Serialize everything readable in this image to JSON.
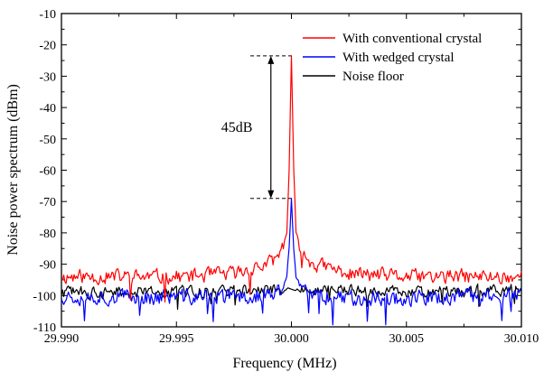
{
  "chart_data": {
    "type": "line",
    "title": "",
    "xlabel": "Frequency (MHz)",
    "ylabel": "Noise power spectrum (dBm)",
    "xlim": [
      29.99,
      30.01
    ],
    "ylim": [
      -110,
      -10
    ],
    "x_ticks": [
      "29.990",
      "29.995",
      "30.000",
      "30.005",
      "30.010"
    ],
    "y_ticks": [
      "-10",
      "-20",
      "-30",
      "-40",
      "-50",
      "-60",
      "-70",
      "-80",
      "-90",
      "-100",
      "-110"
    ],
    "legend_position": "top-right",
    "grid": false,
    "series": [
      {
        "name": "With conventional crystal",
        "color": "#ff0000",
        "x": [
          29.99,
          29.9925,
          29.995,
          29.9975,
          29.999,
          29.9995,
          29.9998,
          29.9999,
          30.0,
          30.0001,
          30.0002,
          30.0005,
          30.001,
          30.0025,
          30.005,
          30.0075,
          30.01
        ],
        "y": [
          -94,
          -94,
          -94,
          -93,
          -90,
          -87,
          -80,
          -60,
          -23.5,
          -60,
          -80,
          -87,
          -90,
          -93,
          -94,
          -94,
          -94
        ]
      },
      {
        "name": "With wedged crystal",
        "color": "#0000ff",
        "x": [
          29.99,
          29.9925,
          29.995,
          29.9975,
          29.999,
          29.9995,
          29.9998,
          29.9999,
          30.0,
          30.0001,
          30.0002,
          30.0005,
          30.001,
          30.0025,
          30.005,
          30.0075,
          30.01
        ],
        "y": [
          -100,
          -100.5,
          -100.5,
          -100.5,
          -100,
          -99,
          -94,
          -85,
          -69,
          -85,
          -94,
          -99,
          -100,
          -100.5,
          -101,
          -100.5,
          -100
        ]
      },
      {
        "name": "Noise floor",
        "color": "#000000",
        "x": [
          29.99,
          29.995,
          30.0,
          30.005,
          30.01
        ],
        "y": [
          -99,
          -99,
          -98,
          -99,
          -98
        ]
      }
    ],
    "annotations": [
      {
        "text": "45dB",
        "x_from": 29.9995,
        "y_from": -23.5,
        "y_to": -69,
        "x_line_start": 29.999,
        "x_line_end": 30.0
      }
    ]
  }
}
